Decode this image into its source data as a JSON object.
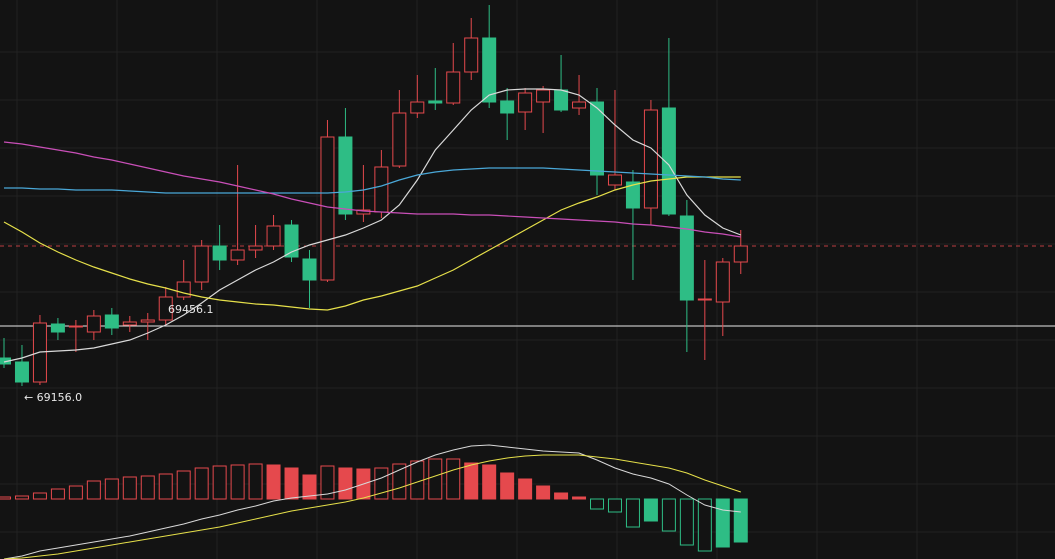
{
  "chart_data": {
    "type": "candlestick",
    "ylim": [
      68936,
      71086
    ],
    "up_color": "#e5494d",
    "down_color": "#2ebd85",
    "open": [
      69296,
      69276,
      69176,
      69466,
      69451,
      69426,
      69511,
      69461,
      69476,
      69486,
      69601,
      69676,
      69856,
      69786,
      69836,
      69856,
      69961,
      69791,
      69686,
      70401,
      70016,
      70026,
      70256,
      70521,
      70581,
      70571,
      70726,
      70896,
      70581,
      70526,
      70576,
      70636,
      70546,
      70576,
      70161,
      70176,
      70046,
      70546,
      70006,
      69586,
      69576,
      69776
    ],
    "high": [
      69396,
      69361,
      69511,
      69496,
      69486,
      69536,
      69546,
      69506,
      69521,
      69651,
      69786,
      69886,
      69961,
      70261,
      69961,
      70011,
      69986,
      69836,
      70486,
      70546,
      70261,
      70336,
      70636,
      70711,
      70746,
      70871,
      70996,
      71061,
      70646,
      70646,
      70656,
      70811,
      70711,
      70646,
      70636,
      70236,
      70586,
      70896,
      70086,
      69786,
      69796,
      69936
    ],
    "low": [
      69246,
      69156,
      69161,
      69386,
      69326,
      69386,
      69411,
      69426,
      69386,
      69461,
      69586,
      69636,
      69736,
      69761,
      69796,
      69836,
      69776,
      69546,
      69676,
      69986,
      69976,
      69996,
      70246,
      70496,
      70536,
      70561,
      70686,
      70546,
      70386,
      70436,
      70421,
      70526,
      70511,
      70111,
      70136,
      69686,
      69961,
      70006,
      69326,
      69286,
      69406,
      69716
    ],
    "close": [
      69266,
      69176,
      69471,
      69426,
      69456,
      69506,
      69446,
      69476,
      69486,
      69601,
      69676,
      69856,
      69786,
      69836,
      69856,
      69956,
      69801,
      69686,
      70401,
      70016,
      70036,
      70251,
      70521,
      70576,
      70571,
      70726,
      70896,
      70576,
      70521,
      70621,
      70636,
      70536,
      70576,
      70211,
      70211,
      70046,
      70536,
      70016,
      69586,
      69591,
      69776,
      69856
    ],
    "moving_averages": [
      {
        "color": "#d9d9d9",
        "values": [
          69276,
          69296,
          69326,
          69331,
          69336,
          69346,
          69366,
          69386,
          69421,
          69461,
          69511,
          69571,
          69636,
          69686,
          69736,
          69776,
          69826,
          69861,
          69886,
          69911,
          69946,
          69986,
          70061,
          70186,
          70336,
          70436,
          70536,
          70611,
          70636,
          70641,
          70641,
          70636,
          70611,
          70546,
          70461,
          70386,
          70346,
          70261,
          70111,
          70011,
          69946,
          69911
        ]
      },
      {
        "color": "#e6e04a",
        "values": [
          69976,
          69926,
          69871,
          69826,
          69786,
          69751,
          69721,
          69691,
          69666,
          69646,
          69621,
          69601,
          69586,
          69576,
          69566,
          69561,
          69551,
          69541,
          69536,
          69556,
          69586,
          69606,
          69631,
          69656,
          69696,
          69736,
          69786,
          69836,
          69886,
          69936,
          69986,
          70036,
          70071,
          70101,
          70136,
          70161,
          70181,
          70191,
          70201,
          70201,
          70201,
          70201
        ]
      },
      {
        "color": "#4aa8d8",
        "values": [
          70146,
          70146,
          70141,
          70141,
          70136,
          70136,
          70136,
          70131,
          70126,
          70121,
          70121,
          70121,
          70121,
          70121,
          70121,
          70121,
          70121,
          70121,
          70121,
          70126,
          70136,
          70156,
          70186,
          70211,
          70226,
          70236,
          70241,
          70246,
          70246,
          70246,
          70246,
          70241,
          70236,
          70231,
          70226,
          70221,
          70216,
          70211,
          70206,
          70201,
          70191,
          70186
        ]
      },
      {
        "color": "#c94fb8",
        "values": [
          70376,
          70366,
          70351,
          70336,
          70321,
          70301,
          70286,
          70266,
          70246,
          70226,
          70206,
          70191,
          70176,
          70156,
          70136,
          70116,
          70091,
          70071,
          70051,
          70041,
          70031,
          70026,
          70021,
          70016,
          70016,
          70016,
          70011,
          70011,
          70006,
          70001,
          69996,
          69991,
          69986,
          69981,
          69976,
          69966,
          69961,
          69951,
          69941,
          69926,
          69916,
          69901
        ]
      }
    ],
    "marker_line": {
      "value": 69456.1,
      "label": "69456.1"
    },
    "low_label": {
      "value": 69156,
      "label": "← 69156.0"
    },
    "macd": {
      "ylim": [
        -60,
        60
      ],
      "histogram": [
        2,
        3,
        6,
        10,
        13,
        18,
        20,
        22,
        23,
        25,
        28,
        31,
        33,
        34,
        35,
        34,
        31,
        24,
        33,
        31,
        30,
        31,
        35,
        38,
        40,
        40,
        36,
        34,
        26,
        20,
        13,
        6,
        2,
        -10,
        -13,
        -28,
        -22,
        -32,
        -46,
        -52,
        -48,
        -43
      ],
      "dif": {
        "color": "#d9d9d9",
        "values": [
          -60,
          -57,
          -52,
          -49,
          -46,
          -43,
          -40,
          -37,
          -33,
          -29,
          -25,
          -20,
          -16,
          -11,
          -7,
          -2,
          1,
          3,
          5,
          9,
          15,
          21,
          29,
          37,
          44,
          49,
          53,
          54,
          52,
          50,
          48,
          47,
          46,
          39,
          31,
          25,
          21,
          15,
          4,
          -6,
          -11,
          -13
        ]
      },
      "dea": {
        "color": "#e6e04a",
        "values": [
          -60,
          -59,
          -57,
          -55,
          -52,
          -49,
          -46,
          -43,
          -40,
          -37,
          -34,
          -31,
          -28,
          -24,
          -20,
          -16,
          -12,
          -9,
          -6,
          -3,
          1,
          6,
          11,
          17,
          23,
          29,
          34,
          38,
          41,
          43,
          44,
          44,
          44,
          42,
          40,
          37,
          34,
          31,
          26,
          19,
          13,
          7
        ]
      }
    }
  }
}
